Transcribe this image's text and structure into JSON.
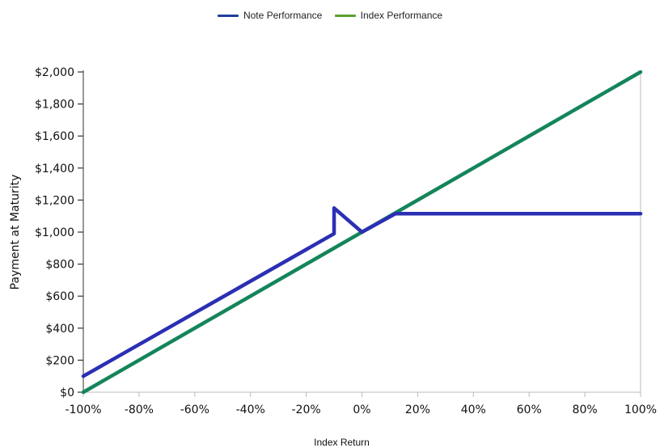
{
  "chart_data": {
    "type": "line",
    "xlabel": "Index Return",
    "ylabel": "Payment at Maturity",
    "xlim": [
      -100,
      100
    ],
    "ylim": [
      0,
      2000
    ],
    "x_ticks": [
      "-100%",
      "-80%",
      "-60%",
      "-40%",
      "-20%",
      "0%",
      "20%",
      "40%",
      "60%",
      "80%",
      "100%"
    ],
    "y_ticks": [
      "$0",
      "$200",
      "$400",
      "$600",
      "$800",
      "$1,000",
      "$1,200",
      "$1,400",
      "$1,600",
      "$1,800",
      "$2,000"
    ],
    "legend_position": "top-center",
    "series": [
      {
        "name": "Note Performance",
        "color": "#2b2fb3",
        "legend_color": "#1f3f9a",
        "points": [
          [
            -100,
            100
          ],
          [
            -10,
            990
          ],
          [
            -10,
            1150
          ],
          [
            0,
            1000
          ],
          [
            12,
            1115
          ],
          [
            100,
            1115
          ]
        ]
      },
      {
        "name": "Index Performance",
        "color": "#14855a",
        "legend_color": "#5aa02c",
        "points": [
          [
            -100,
            0
          ],
          [
            100,
            2000
          ]
        ]
      }
    ]
  }
}
